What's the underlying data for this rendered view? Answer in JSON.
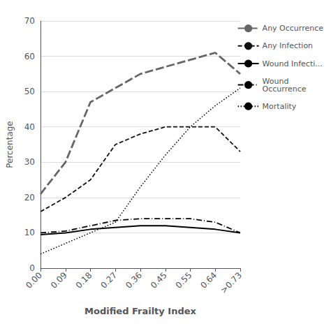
{
  "chart_data": {
    "type": "line",
    "categories": [
      "0.00",
      "0.09",
      "0.18",
      "0.27",
      "0.36",
      "0.45",
      "0.55",
      "0.64",
      ">0.73"
    ],
    "series": [
      {
        "name": "Any Occurrence",
        "color": "#666666",
        "line_style": "longdash",
        "values": [
          21,
          30,
          47,
          51,
          55,
          57,
          59,
          61,
          55
        ]
      },
      {
        "name": "Any Infection",
        "color": "#111111",
        "line_style": "dashed",
        "values": [
          16,
          20,
          25,
          35,
          38,
          40,
          40,
          40,
          33
        ]
      },
      {
        "name": "Wound Infecti...",
        "color": "#000000",
        "line_style": "solid",
        "values": [
          9.5,
          10,
          11,
          11.5,
          12,
          12,
          11.5,
          11,
          10
        ]
      },
      {
        "name": "Wound\nOccurrence",
        "color": "#000000",
        "line_style": "dashdot",
        "values": [
          10,
          10.5,
          12,
          13.5,
          14,
          14,
          14,
          13,
          10
        ]
      },
      {
        "name": "Mortality",
        "color": "#000000",
        "line_style": "dotted",
        "values": [
          4,
          7,
          10,
          13,
          23,
          32,
          40,
          46,
          51
        ]
      }
    ],
    "xlabel": "Modified Frailty Index",
    "ylabel": "Percentage",
    "ylim": [
      0,
      70
    ],
    "yticks": [
      0,
      10,
      20,
      30,
      40,
      50,
      60,
      70
    ],
    "grid": true,
    "legend": "right"
  }
}
